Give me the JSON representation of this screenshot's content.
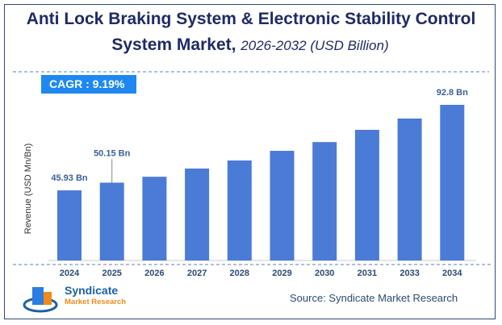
{
  "chart_data": {
    "type": "bar",
    "title": "Anti Lock Braking System & Electronic Stability Control System Market,",
    "subtitle": "2026-2032 (USD Billion)",
    "ylabel": "Revenue (USD Mn/Bn)",
    "xlabel": "",
    "categories": [
      "2024",
      "2025",
      "2026",
      "2027",
      "2028",
      "2029",
      "2030",
      "2031",
      "2033",
      "2034"
    ],
    "values": [
      45.93,
      50.15,
      53.4,
      57.9,
      62.3,
      67.6,
      72.4,
      79.1,
      85.3,
      92.8
    ],
    "data_labels": {
      "0": "45.93 Bn",
      "1": "50.15 Bn",
      "9": "92.8 Bn"
    },
    "ylim": [
      7.5,
      100
    ],
    "grid": false,
    "bar_color": "#4a7bd6"
  },
  "cagr": "CAGR :  9.19%",
  "source": "Source: Syndicate Market Research",
  "logo": {
    "name": "Syndicate",
    "sub": "Market Research"
  }
}
